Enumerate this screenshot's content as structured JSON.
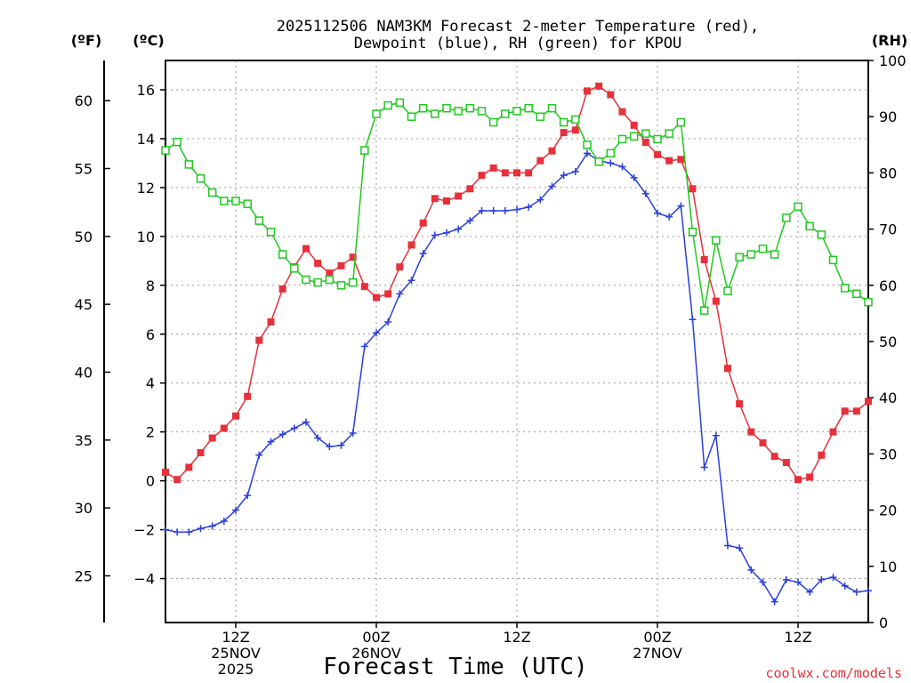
{
  "chart_data": {
    "type": "line",
    "title_lines": [
      "2025112506 NAM3KM Forecast 2-meter Temperature (red),",
      "Dewpoint (blue), RH (green) for KPOU"
    ],
    "xlabel": "Forecast Time (UTC)",
    "credit": "coolwx.com/models",
    "units": {
      "f": "(ºF)",
      "c": "(ºC)",
      "rh": "(RH)"
    },
    "x_range_hours": [
      0,
      60
    ],
    "y_celsius_range": [
      -5.8,
      17.2
    ],
    "y_rh_range": [
      0,
      100
    ],
    "celsius_ticks": [
      "16",
      "14",
      "12",
      "10",
      "8",
      "6",
      "4",
      "2",
      "0",
      "−2",
      "−4"
    ],
    "celsius_tick_values": [
      16,
      14,
      12,
      10,
      8,
      6,
      4,
      2,
      0,
      -2,
      -4
    ],
    "fahrenheit_ticks": [
      "60",
      "55",
      "50",
      "45",
      "40",
      "35",
      "30",
      "25"
    ],
    "fahrenheit_tick_values": [
      60,
      55,
      50,
      45,
      40,
      35,
      30,
      25
    ],
    "rh_ticks": [
      "100",
      "90",
      "80",
      "70",
      "60",
      "50",
      "40",
      "30",
      "20",
      "10",
      "0"
    ],
    "rh_tick_values": [
      100,
      90,
      80,
      70,
      60,
      50,
      40,
      30,
      20,
      10,
      0
    ],
    "x_ticks": [
      {
        "hour": 6,
        "lines": [
          "12Z",
          "25NOV",
          "2025"
        ]
      },
      {
        "hour": 18,
        "lines": [
          "00Z",
          "26NOV"
        ]
      },
      {
        "hour": 30,
        "lines": [
          "12Z"
        ]
      },
      {
        "hour": 42,
        "lines": [
          "00Z",
          "27NOV"
        ]
      },
      {
        "hour": 54,
        "lines": [
          "12Z"
        ]
      }
    ],
    "series": [
      {
        "name": "Temperature",
        "color": "#e8303a",
        "marker": "filled-square",
        "axis": "celsius",
        "values": [
          0.35,
          0.05,
          0.55,
          1.15,
          1.75,
          2.15,
          2.65,
          3.45,
          5.75,
          6.5,
          7.85,
          8.75,
          9.5,
          8.9,
          8.5,
          8.8,
          9.15,
          7.95,
          7.5,
          7.65,
          8.75,
          9.65,
          10.55,
          11.55,
          11.45,
          11.65,
          11.95,
          12.5,
          12.8,
          12.6,
          12.6,
          12.6,
          13.1,
          13.5,
          14.25,
          14.35,
          15.95,
          16.15,
          15.8,
          15.1,
          14.55,
          13.85,
          13.35,
          13.1,
          13.15,
          11.95,
          9.05,
          7.35,
          4.6,
          3.15,
          2.0,
          1.55,
          1.0,
          0.75,
          0.05,
          0.15,
          1.05,
          2.0,
          2.85,
          2.85,
          3.25
        ]
      },
      {
        "name": "Dewpoint",
        "color": "#2a3fe0",
        "marker": "plus",
        "axis": "celsius",
        "values": [
          -2.0,
          -2.1,
          -2.1,
          -1.95,
          -1.85,
          -1.65,
          -1.2,
          -0.6,
          1.05,
          1.6,
          1.9,
          2.15,
          2.4,
          1.75,
          1.4,
          1.45,
          1.95,
          5.5,
          6.05,
          6.5,
          7.65,
          8.2,
          9.3,
          10.05,
          10.15,
          10.3,
          10.65,
          11.05,
          11.05,
          11.05,
          11.1,
          11.2,
          11.5,
          12.05,
          12.5,
          12.65,
          13.4,
          13.1,
          13.0,
          12.85,
          12.4,
          11.75,
          10.95,
          10.8,
          11.25,
          6.6,
          0.55,
          1.85,
          -2.65,
          -2.75,
          -3.65,
          -4.15,
          -4.95,
          -4.05,
          -4.15,
          -4.55,
          -4.05,
          -3.95,
          -4.3,
          -4.55,
          -4.5
        ]
      },
      {
        "name": "RH",
        "color": "#20c820",
        "marker": "open-square",
        "axis": "rh",
        "values": [
          84,
          85.5,
          81.5,
          79,
          76.5,
          75,
          75,
          74.5,
          71.5,
          69.5,
          65.5,
          63,
          61,
          60.5,
          61,
          60,
          60.5,
          84,
          90.5,
          92,
          92.5,
          90,
          91.5,
          90.5,
          91.5,
          91,
          91.5,
          91,
          89,
          90.5,
          91,
          91.5,
          90,
          91.5,
          89,
          89.5,
          85,
          82,
          83.5,
          86,
          86.5,
          87,
          86,
          87,
          89,
          69.5,
          55.5,
          68,
          59,
          65,
          65.5,
          66.5,
          65.5,
          72,
          74,
          70.5,
          69,
          64.5,
          59.5,
          58.5,
          57
        ]
      }
    ]
  }
}
